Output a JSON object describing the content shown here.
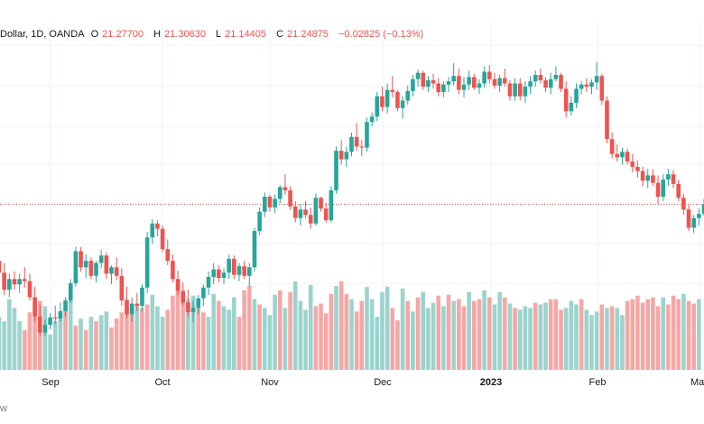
{
  "legend": {
    "symbol": "Dollar, 1D, OANDA",
    "open_label": "O",
    "open": "21.27700",
    "high_label": "H",
    "high": "21.30630",
    "low_label": "L",
    "low": "21.14405",
    "close_label": "C",
    "close": "21.24875",
    "change": "−0.02825 (−0.13%)"
  },
  "footer_text": "w",
  "colors": {
    "up": "#26a69a",
    "down": "#ef5350",
    "vol_up": "#9bd3cd",
    "vol_down": "#f5a7a5",
    "grid": "#f0f3fa",
    "price_line": "#ef5350",
    "background": "#ffffff"
  },
  "chart_data": {
    "type": "candlestick",
    "x_tick_labels": [
      "Sep",
      "Oct",
      "Nov",
      "Dec",
      "2023",
      "Feb",
      "Ma"
    ],
    "x_tick_bold": [
      false,
      false,
      false,
      false,
      true,
      false,
      false
    ],
    "current_price": 21.249,
    "candles": [
      [
        20.72,
        20.86,
        20.52,
        20.61
      ],
      [
        20.61,
        20.7,
        20.4,
        20.45
      ],
      [
        20.45,
        20.6,
        20.38,
        20.55
      ],
      [
        20.55,
        20.62,
        20.45,
        20.5
      ],
      [
        20.5,
        20.6,
        20.42,
        20.55
      ],
      [
        20.55,
        20.66,
        20.47,
        20.53
      ],
      [
        20.53,
        20.6,
        20.35,
        20.38
      ],
      [
        20.38,
        20.48,
        20.15,
        20.2
      ],
      [
        20.2,
        20.31,
        20.02,
        20.05
      ],
      [
        20.05,
        20.17,
        20.02,
        20.12
      ],
      [
        20.12,
        20.23,
        20.08,
        20.19
      ],
      [
        20.19,
        20.3,
        20.13,
        20.18
      ],
      [
        20.18,
        20.33,
        20.15,
        20.25
      ],
      [
        20.25,
        20.38,
        20.2,
        20.35
      ],
      [
        20.35,
        20.55,
        20.33,
        20.51
      ],
      [
        20.51,
        20.85,
        20.48,
        20.81
      ],
      [
        20.81,
        20.85,
        20.62,
        20.66
      ],
      [
        20.66,
        20.78,
        20.56,
        20.72
      ],
      [
        20.72,
        20.75,
        20.55,
        20.58
      ],
      [
        20.58,
        20.72,
        20.52,
        20.7
      ],
      [
        20.7,
        20.82,
        20.65,
        20.77
      ],
      [
        20.77,
        20.8,
        20.55,
        20.6
      ],
      [
        20.6,
        20.68,
        20.5,
        20.66
      ],
      [
        20.66,
        20.75,
        20.54,
        20.58
      ],
      [
        20.58,
        20.65,
        20.3,
        20.35
      ],
      [
        20.35,
        20.48,
        20.18,
        20.22
      ],
      [
        20.22,
        20.38,
        20.15,
        20.32
      ],
      [
        20.32,
        20.42,
        20.25,
        20.3
      ],
      [
        20.3,
        20.5,
        20.25,
        20.47
      ],
      [
        20.47,
        20.99,
        20.42,
        20.94
      ],
      [
        20.94,
        21.11,
        20.88,
        21.07
      ],
      [
        21.07,
        21.1,
        20.95,
        21.02
      ],
      [
        21.02,
        21.05,
        20.8,
        20.83
      ],
      [
        20.83,
        20.92,
        20.68,
        20.72
      ],
      [
        20.72,
        20.78,
        20.52,
        20.55
      ],
      [
        20.55,
        20.63,
        20.4,
        20.44
      ],
      [
        20.44,
        20.52,
        20.3,
        20.33
      ],
      [
        20.33,
        20.45,
        20.2,
        20.24
      ],
      [
        20.24,
        20.35,
        20.15,
        20.28
      ],
      [
        20.28,
        20.4,
        20.22,
        20.37
      ],
      [
        20.37,
        20.5,
        20.3,
        20.47
      ],
      [
        20.47,
        20.62,
        20.4,
        20.57
      ],
      [
        20.57,
        20.7,
        20.5,
        20.64
      ],
      [
        20.64,
        20.68,
        20.52,
        20.56
      ],
      [
        20.56,
        20.65,
        20.5,
        20.61
      ],
      [
        20.61,
        20.78,
        20.55,
        20.74
      ],
      [
        20.74,
        20.77,
        20.55,
        20.59
      ],
      [
        20.59,
        20.7,
        20.53,
        20.67
      ],
      [
        20.67,
        20.72,
        20.55,
        20.58
      ],
      [
        20.58,
        20.7,
        20.48,
        20.66
      ],
      [
        20.66,
        21.03,
        20.62,
        21.0
      ],
      [
        21.0,
        21.22,
        20.96,
        21.18
      ],
      [
        21.18,
        21.36,
        21.13,
        21.32
      ],
      [
        21.32,
        21.34,
        21.18,
        21.22
      ],
      [
        21.22,
        21.34,
        21.17,
        21.3
      ],
      [
        21.3,
        21.43,
        21.26,
        21.41
      ],
      [
        21.41,
        21.53,
        21.34,
        21.38
      ],
      [
        21.38,
        21.42,
        21.2,
        21.23
      ],
      [
        21.23,
        21.28,
        21.08,
        21.12
      ],
      [
        21.12,
        21.25,
        21.05,
        21.2
      ],
      [
        21.2,
        21.28,
        21.12,
        21.15
      ],
      [
        21.15,
        21.22,
        21.02,
        21.07
      ],
      [
        21.07,
        21.35,
        21.05,
        21.31
      ],
      [
        21.31,
        21.32,
        21.18,
        21.21
      ],
      [
        21.21,
        21.26,
        21.08,
        21.1
      ],
      [
        21.1,
        21.42,
        21.08,
        21.38
      ],
      [
        21.38,
        21.79,
        21.35,
        21.75
      ],
      [
        21.75,
        21.85,
        21.62,
        21.67
      ],
      [
        21.67,
        21.79,
        21.6,
        21.74
      ],
      [
        21.74,
        21.92,
        21.7,
        21.88
      ],
      [
        21.88,
        22.01,
        21.75,
        21.79
      ],
      [
        21.79,
        21.85,
        21.7,
        21.78
      ],
      [
        21.78,
        22.06,
        21.74,
        22.02
      ],
      [
        22.02,
        22.11,
        21.98,
        22.07
      ],
      [
        22.07,
        22.3,
        22.03,
        22.26
      ],
      [
        22.26,
        22.35,
        22.12,
        22.16
      ],
      [
        22.16,
        22.38,
        22.1,
        22.32
      ],
      [
        22.32,
        22.45,
        22.25,
        22.3
      ],
      [
        22.3,
        22.32,
        22.12,
        22.15
      ],
      [
        22.15,
        22.26,
        22.05,
        22.22
      ],
      [
        22.22,
        22.36,
        22.18,
        22.31
      ],
      [
        22.31,
        22.46,
        22.26,
        22.42
      ],
      [
        22.42,
        22.51,
        22.35,
        22.48
      ],
      [
        22.48,
        22.5,
        22.32,
        22.35
      ],
      [
        22.35,
        22.45,
        22.3,
        22.41
      ],
      [
        22.41,
        22.47,
        22.33,
        22.38
      ],
      [
        22.38,
        22.43,
        22.26,
        22.3
      ],
      [
        22.3,
        22.4,
        22.25,
        22.37
      ],
      [
        22.37,
        22.44,
        22.3,
        22.4
      ],
      [
        22.4,
        22.57,
        22.36,
        22.45
      ],
      [
        22.45,
        22.52,
        22.28,
        22.32
      ],
      [
        22.32,
        22.44,
        22.25,
        22.37
      ],
      [
        22.37,
        22.5,
        22.32,
        22.44
      ],
      [
        22.44,
        22.47,
        22.32,
        22.34
      ],
      [
        22.34,
        22.42,
        22.28,
        22.38
      ],
      [
        22.38,
        22.54,
        22.34,
        22.49
      ],
      [
        22.49,
        22.55,
        22.38,
        22.42
      ],
      [
        22.42,
        22.48,
        22.33,
        22.36
      ],
      [
        22.36,
        22.46,
        22.3,
        22.43
      ],
      [
        22.43,
        22.52,
        22.35,
        22.38
      ],
      [
        22.38,
        22.41,
        22.22,
        22.26
      ],
      [
        22.26,
        22.43,
        22.22,
        22.38
      ],
      [
        22.38,
        22.43,
        22.22,
        22.26
      ],
      [
        22.26,
        22.4,
        22.2,
        22.35
      ],
      [
        22.35,
        22.45,
        22.28,
        22.4
      ],
      [
        22.4,
        22.5,
        22.35,
        22.46
      ],
      [
        22.46,
        22.52,
        22.38,
        22.41
      ],
      [
        22.41,
        22.44,
        22.3,
        22.34
      ],
      [
        22.34,
        22.48,
        22.28,
        22.42
      ],
      [
        22.42,
        22.54,
        22.4,
        22.46
      ],
      [
        22.46,
        22.48,
        22.3,
        22.33
      ],
      [
        22.33,
        22.4,
        22.06,
        22.12
      ],
      [
        22.12,
        22.26,
        22.08,
        22.2
      ],
      [
        22.2,
        22.38,
        22.15,
        22.33
      ],
      [
        22.33,
        22.4,
        22.28,
        22.37
      ],
      [
        22.37,
        22.43,
        22.3,
        22.35
      ],
      [
        22.35,
        22.42,
        22.28,
        22.39
      ],
      [
        22.39,
        22.58,
        22.32,
        22.45
      ],
      [
        22.45,
        22.47,
        22.18,
        22.22
      ],
      [
        22.22,
        22.26,
        21.82,
        21.86
      ],
      [
        21.86,
        21.92,
        21.68,
        21.72
      ],
      [
        21.72,
        21.81,
        21.65,
        21.69
      ],
      [
        21.69,
        21.78,
        21.62,
        21.74
      ],
      [
        21.74,
        21.77,
        21.62,
        21.65
      ],
      [
        21.65,
        21.72,
        21.55,
        21.6
      ],
      [
        21.6,
        21.66,
        21.5,
        21.56
      ],
      [
        21.56,
        21.6,
        21.42,
        21.47
      ],
      [
        21.47,
        21.58,
        21.4,
        21.52
      ],
      [
        21.52,
        21.58,
        21.42,
        21.45
      ],
      [
        21.45,
        21.52,
        21.25,
        21.32
      ],
      [
        21.32,
        21.53,
        21.28,
        21.48
      ],
      [
        21.48,
        21.58,
        21.42,
        21.53
      ],
      [
        21.53,
        21.57,
        21.4,
        21.44
      ],
      [
        21.44,
        21.48,
        21.28,
        21.31
      ],
      [
        21.31,
        21.35,
        21.15,
        21.2
      ],
      [
        21.2,
        21.24,
        21.0,
        21.03
      ],
      [
        21.03,
        21.15,
        20.98,
        21.12
      ],
      [
        21.12,
        21.21,
        21.05,
        21.16
      ],
      [
        21.16,
        21.3,
        21.14,
        21.25
      ]
    ],
    "volumes": [
      [
        60,
        0
      ],
      [
        55,
        0
      ],
      [
        80,
        0
      ],
      [
        70,
        0
      ],
      [
        55,
        0
      ],
      [
        45,
        1
      ],
      [
        65,
        1
      ],
      [
        75,
        1
      ],
      [
        78,
        1
      ],
      [
        72,
        0
      ],
      [
        40,
        0
      ],
      [
        55,
        0
      ],
      [
        62,
        0
      ],
      [
        70,
        1
      ],
      [
        80,
        0
      ],
      [
        50,
        1
      ],
      [
        58,
        0
      ],
      [
        45,
        1
      ],
      [
        60,
        0
      ],
      [
        55,
        1
      ],
      [
        62,
        0
      ],
      [
        66,
        0
      ],
      [
        48,
        1
      ],
      [
        58,
        1
      ],
      [
        65,
        1
      ],
      [
        80,
        1
      ],
      [
        70,
        1
      ],
      [
        75,
        0
      ],
      [
        70,
        1
      ],
      [
        74,
        1
      ],
      [
        85,
        0
      ],
      [
        72,
        0
      ],
      [
        60,
        0
      ],
      [
        68,
        1
      ],
      [
        84,
        1
      ],
      [
        95,
        1
      ],
      [
        82,
        1
      ],
      [
        80,
        0
      ],
      [
        84,
        0
      ],
      [
        70,
        1
      ],
      [
        65,
        1
      ],
      [
        60,
        0
      ],
      [
        86,
        0
      ],
      [
        78,
        1
      ],
      [
        72,
        0
      ],
      [
        68,
        0
      ],
      [
        82,
        0
      ],
      [
        60,
        1
      ],
      [
        90,
        1
      ],
      [
        95,
        1
      ],
      [
        80,
        0
      ],
      [
        74,
        1
      ],
      [
        70,
        0
      ],
      [
        62,
        0
      ],
      [
        85,
        0
      ],
      [
        90,
        1
      ],
      [
        70,
        0
      ],
      [
        88,
        1
      ],
      [
        100,
        0
      ],
      [
        78,
        0
      ],
      [
        68,
        0
      ],
      [
        96,
        0
      ],
      [
        72,
        1
      ],
      [
        75,
        1
      ],
      [
        64,
        1
      ],
      [
        86,
        1
      ],
      [
        95,
        0
      ],
      [
        100,
        1
      ],
      [
        86,
        1
      ],
      [
        80,
        0
      ],
      [
        66,
        1
      ],
      [
        78,
        1
      ],
      [
        94,
        0
      ],
      [
        80,
        0
      ],
      [
        60,
        0
      ],
      [
        88,
        0
      ],
      [
        94,
        0
      ],
      [
        70,
        1
      ],
      [
        56,
        1
      ],
      [
        92,
        0
      ],
      [
        78,
        1
      ],
      [
        66,
        0
      ],
      [
        82,
        1
      ],
      [
        88,
        0
      ],
      [
        70,
        0
      ],
      [
        76,
        0
      ],
      [
        84,
        1
      ],
      [
        72,
        0
      ],
      [
        85,
        1
      ],
      [
        78,
        0
      ],
      [
        80,
        1
      ],
      [
        72,
        1
      ],
      [
        88,
        0
      ],
      [
        78,
        1
      ],
      [
        80,
        1
      ],
      [
        90,
        0
      ],
      [
        82,
        1
      ],
      [
        74,
        0
      ],
      [
        88,
        0
      ],
      [
        82,
        1
      ],
      [
        75,
        0
      ],
      [
        70,
        1
      ],
      [
        68,
        0
      ],
      [
        72,
        0
      ],
      [
        70,
        0
      ],
      [
        76,
        1
      ],
      [
        74,
        0
      ],
      [
        76,
        0
      ],
      [
        80,
        1
      ],
      [
        80,
        1
      ],
      [
        68,
        1
      ],
      [
        70,
        0
      ],
      [
        78,
        0
      ],
      [
        74,
        0
      ],
      [
        80,
        1
      ],
      [
        68,
        0
      ],
      [
        62,
        0
      ],
      [
        66,
        0
      ],
      [
        74,
        1
      ],
      [
        70,
        0
      ],
      [
        72,
        1
      ],
      [
        70,
        0
      ],
      [
        62,
        0
      ],
      [
        78,
        1
      ],
      [
        80,
        1
      ],
      [
        84,
        1
      ],
      [
        76,
        1
      ],
      [
        80,
        1
      ],
      [
        82,
        1
      ],
      [
        72,
        1
      ],
      [
        82,
        0
      ],
      [
        74,
        1
      ],
      [
        84,
        1
      ],
      [
        80,
        1
      ],
      [
        86,
        0
      ],
      [
        78,
        1
      ],
      [
        75,
        1
      ],
      [
        80,
        0
      ]
    ]
  }
}
